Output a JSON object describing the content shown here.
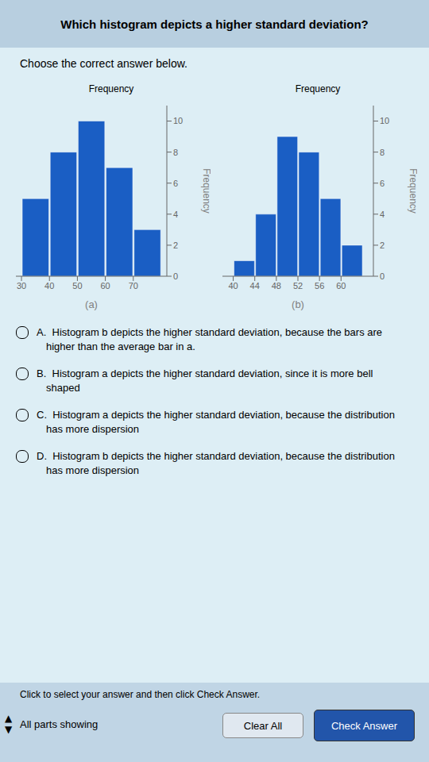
{
  "chart_data": [
    {
      "type": "histogram",
      "title": "Which histogram depicts a higher standard deviation?",
      "subtitle": "Frequency",
      "xlabel": "(a)",
      "ylabel": "Frequency",
      "bins": [
        30,
        40,
        50,
        60,
        70,
        80
      ],
      "values": [
        5,
        8,
        10,
        7,
        3
      ],
      "color": "#1a5ec4",
      "xlim": [
        28,
        82
      ],
      "ylim": [
        0,
        11
      ],
      "xticks": [
        30,
        40,
        50,
        60,
        70
      ],
      "yticks": [
        0,
        2,
        4,
        6,
        8,
        10
      ],
      "grid": false,
      "annotations": [
        "Choose the correct answer below.",
        "A.  Histogram b depicts the higher standard deviation, because the bars are",
        "higher than the average bar in a.",
        "B.  Histogram a depicts the higher standard deviation, since it is more bell",
        "shaped",
        "C.  Histogram a depicts the higher standard deviation, because the distribution",
        "has more dispersion",
        "D.  Histogram b depicts the higher standard deviation, because the distribution",
        "has more dispersion",
        "Click to select your answer and then click Check Answer.",
        "All parts showing",
        "Clear All",
        "Check Answer",
        "▲",
        "▼"
      ]
    },
    {
      "type": "histogram",
      "subtitle": "Frequency",
      "xlabel": "(b)",
      "ylabel": "Frequency",
      "bins": [
        40,
        44,
        48,
        52,
        56,
        60,
        64
      ],
      "values": [
        1,
        4,
        9,
        8,
        5,
        2
      ],
      "color": "#1a5ec4",
      "xlim": [
        38,
        66
      ],
      "ylim": [
        0,
        11
      ],
      "xticks": [
        40,
        44,
        48,
        52,
        56,
        60
      ],
      "yticks": [
        0,
        2,
        4,
        6,
        8,
        10
      ],
      "grid": false
    }
  ]
}
